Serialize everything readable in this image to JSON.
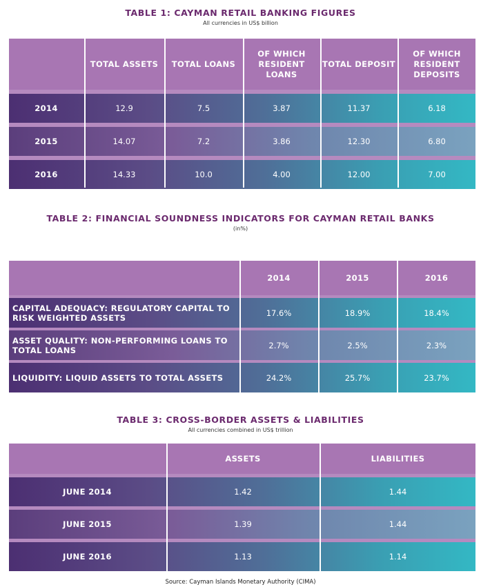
{
  "table1": {
    "title": "TABLE 1: CAYMAN RETAIL BANKING FIGURES",
    "subtitle": "All currencies in US$ billion",
    "headers": [
      "",
      "TOTAL ASSETS",
      "TOTAL LOANS",
      "OF WHICH RESIDENT LOANS",
      "TOTAL DEPOSIT",
      "OF WHICH RESIDENT DEPOSITS"
    ],
    "rows": [
      {
        "label": "2014",
        "values": [
          "12.9",
          "7.5",
          "3.87",
          "11.37",
          "6.18"
        ]
      },
      {
        "label": "2015",
        "values": [
          "14.07",
          "7.2",
          "3.86",
          "12.30",
          "6.80"
        ]
      },
      {
        "label": "2016",
        "values": [
          "14.33",
          "10.0",
          "4.00",
          "12.00",
          "7.00"
        ]
      }
    ]
  },
  "table2": {
    "title": "TABLE 2: FINANCIAL SOUNDNESS INDICATORS FOR CAYMAN RETAIL BANKS",
    "subtitle": "(in%)",
    "headers": [
      "",
      "2014",
      "2015",
      "2016"
    ],
    "rows": [
      {
        "label": "CAPITAL ADEQUACY: REGULATORY CAPITAL TO RISK WEIGHTED ASSETS",
        "values": [
          "17.6%",
          "18.9%",
          "18.4%"
        ]
      },
      {
        "label": "ASSET QUALITY: NON-PERFORMING LOANS TO TOTAL LOANS",
        "values": [
          "2.7%",
          "2.5%",
          "2.3%"
        ]
      },
      {
        "label": "LIQUIDITY: LIQUID ASSETS TO TOTAL ASSETS",
        "values": [
          "24.2%",
          "25.7%",
          "23.7%"
        ]
      }
    ]
  },
  "table3": {
    "title": "TABLE 3: CROSS-BORDER ASSETS & LIABILITIES",
    "subtitle": "All currencies  combined in US$ trillion",
    "headers": [
      "",
      "ASSETS",
      "LIABILITIES"
    ],
    "rows": [
      {
        "label": "JUNE 2014",
        "values": [
          "1.42",
          "1.44"
        ]
      },
      {
        "label": "JUNE 2015",
        "values": [
          "1.39",
          "1.44"
        ]
      },
      {
        "label": "JUNE 2016",
        "values": [
          "1.13",
          "1.14"
        ]
      }
    ]
  },
  "source": "Source: Cayman Islands Monetary Authority (CIMA)"
}
